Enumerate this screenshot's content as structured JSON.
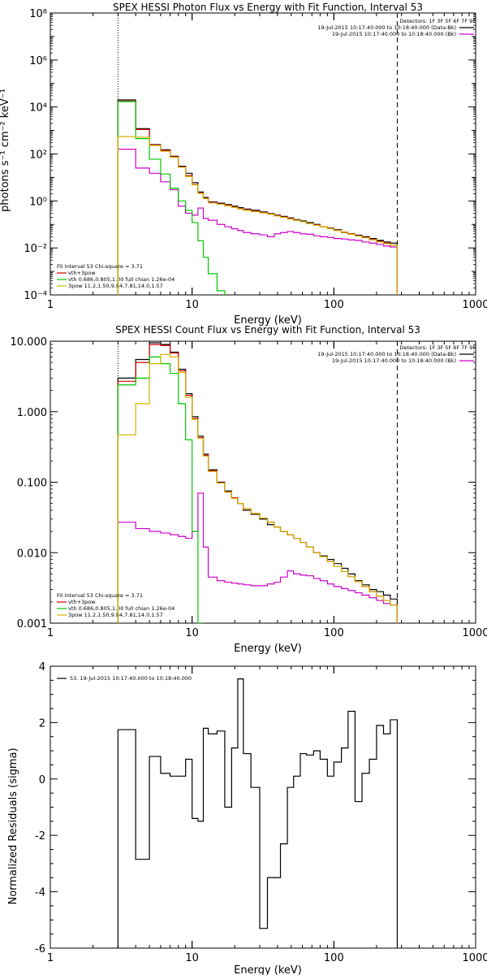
{
  "chart_data": [
    {
      "type": "line",
      "title": "SPEX HESSI Photon Flux vs Energy with Fit Function, Interval 53",
      "xlabel": "Energy (keV)",
      "ylabel": "photons s⁻¹ cm⁻² keV⁻¹",
      "xscale": "log",
      "yscale": "log",
      "xlim": [
        1,
        1000
      ],
      "ylim": [
        0.0001,
        100000000
      ],
      "x_ticks": [
        "1",
        "10",
        "100",
        "1000"
      ],
      "y_ticks": [
        "10⁻⁴",
        "10⁻²",
        "10⁰",
        "10²",
        "10⁴",
        "10⁶",
        "10⁸"
      ],
      "vlines": [
        {
          "x": 3,
          "style": "dotted"
        },
        {
          "x": 280,
          "style": "dashed"
        }
      ],
      "detectors_text": "Detectors: 1F 3F 5F 6F 7F 9F",
      "legend_right": [
        {
          "name": "19-Jul-2015 10:17:40.000 to 10:18:40.000 (Data-Bk)",
          "color": "#000000"
        },
        {
          "name": "19-Jul-2015 10:17:40.000 to 10:18:40.000 (Bk)",
          "color": "#cc00cc"
        }
      ],
      "legend_left": {
        "header": "Fit Interval 53   Chi-square = 3.71",
        "items": [
          {
            "name": "vth+3pow",
            "color": "#d40000"
          },
          {
            "name": "vth 0.686,0.805,1.00  full chian 1.26e-04",
            "color": "#00c800"
          },
          {
            "name": "3pow 11.2,1.50,9.84,7.81,14.0,1.57",
            "color": "#d4b400"
          }
        ]
      },
      "bin_edges": [
        3.0,
        3.5,
        4.0,
        4.5,
        5.0,
        5.5,
        6.0,
        6.5,
        7.0,
        7.5,
        8.0,
        8.5,
        9.0,
        9.5,
        10.0,
        11.0,
        12.0,
        13.0,
        15.0,
        17.0,
        19.0,
        21.0,
        23.0,
        26.0,
        30.0,
        34.0,
        38.0,
        42.0,
        47.0,
        52.0,
        58.0,
        64.0,
        72.0,
        80.0,
        90.0,
        100.0,
        113.0,
        126.0,
        141.0,
        158.0,
        178.0,
        200.0,
        224.0,
        250.0,
        280.0
      ],
      "series": [
        {
          "name": "Data-Bk",
          "color": "#000000",
          "values": [
            20000,
            20000,
            1200,
            1200,
            250,
            250,
            150,
            150,
            80,
            80,
            30,
            30,
            15,
            15,
            6,
            2.4,
            1.4,
            0.9,
            0.8,
            0.7,
            0.6,
            0.52,
            0.45,
            0.4,
            0.34,
            0.29,
            0.25,
            0.22,
            0.19,
            0.16,
            0.14,
            0.12,
            0.1,
            0.08,
            0.07,
            0.06,
            0.045,
            0.04,
            0.035,
            0.03,
            0.025,
            0.021,
            0.018,
            0.016
          ]
        },
        {
          "name": "Bk",
          "color": "#cc00cc",
          "values": [
            160,
            160,
            25,
            25,
            15,
            15,
            6.5,
            6.5,
            3,
            3,
            0.6,
            0.6,
            0.3,
            0.3,
            0.25,
            0.5,
            0.18,
            0.15,
            0.1,
            0.08,
            0.065,
            0.055,
            0.045,
            0.04,
            0.036,
            0.03,
            0.04,
            0.045,
            0.05,
            0.045,
            0.04,
            0.038,
            0.033,
            0.03,
            0.028,
            0.025,
            0.024,
            0.022,
            0.021,
            0.018,
            0.016,
            0.014,
            0.012,
            0.011
          ]
        },
        {
          "name": "vth+3pow",
          "color": "#d40000",
          "values": [
            18000,
            18000,
            1100,
            1100,
            240,
            240,
            140,
            140,
            75,
            75,
            28,
            28,
            12,
            12,
            5,
            2.2,
            1.3,
            0.85,
            0.75,
            0.65,
            0.55,
            0.48,
            0.42,
            0.37,
            0.32,
            0.28,
            0.24,
            0.21,
            0.18,
            0.15,
            0.13,
            0.11,
            0.095,
            0.08,
            0.068,
            0.057,
            0.047,
            0.04,
            0.033,
            0.028,
            0.023,
            0.019,
            0.016,
            0.013
          ]
        },
        {
          "name": "vth",
          "color": "#00c800",
          "values": [
            17000,
            17000,
            450,
            450,
            60,
            60,
            14,
            14,
            3.5,
            3.5,
            1.0,
            1.0,
            0.4,
            0.4,
            0.12,
            0.02,
            0.004,
            0.0008,
            0.00015
          ]
        },
        {
          "name": "3pow",
          "color": "#d4b400",
          "values": [
            550,
            550,
            520,
            520,
            230,
            230,
            130,
            130,
            72,
            72,
            27,
            27,
            11,
            11,
            4.8,
            2.1,
            1.25,
            0.82,
            0.72,
            0.62,
            0.53,
            0.46,
            0.4,
            0.35,
            0.31,
            0.27,
            0.23,
            0.2,
            0.17,
            0.15,
            0.13,
            0.11,
            0.092,
            0.078,
            0.066,
            0.055,
            0.046,
            0.038,
            0.032,
            0.027,
            0.022,
            0.018,
            0.015,
            0.013
          ]
        }
      ]
    },
    {
      "type": "line",
      "title": "SPEX HESSI Count Flux vs Energy with Fit Function, Interval 53",
      "xlabel": "Energy (keV)",
      "ylabel": "",
      "xscale": "log",
      "yscale": "log",
      "xlim": [
        1,
        1000
      ],
      "ylim": [
        0.001,
        10
      ],
      "x_ticks": [
        "1",
        "10",
        "100",
        "1000"
      ],
      "y_ticks": [
        "0.001",
        "0.010",
        "0.100",
        "1.000",
        "10.000"
      ],
      "vlines": [
        {
          "x": 3,
          "style": "dotted"
        },
        {
          "x": 280,
          "style": "dashed"
        }
      ],
      "detectors_text": "Detectors: 1F 3F 5F 6F 7F 9F",
      "legend_right": [
        {
          "name": "19-Jul-2015 10:17:40.000 to 10:18:40.000 (Data-Bk)",
          "color": "#000000"
        },
        {
          "name": "19-Jul-2015 10:17:40.000 to 10:18:40.000 (Bk)",
          "color": "#cc00cc"
        }
      ],
      "legend_left": {
        "header": "Fit Interval 53   Chi-square = 3.71",
        "items": [
          {
            "name": "vth+3pow",
            "color": "#d40000"
          },
          {
            "name": "vth 0.686,0.805,1.00  full chian 1.26e-04",
            "color": "#00c800"
          },
          {
            "name": "3pow 11.2,1.50,9.84,7.81,14.0,1.57",
            "color": "#d4b400"
          }
        ]
      },
      "bin_edges": [
        3.0,
        3.5,
        4.0,
        4.5,
        5.0,
        5.5,
        6.0,
        6.5,
        7.0,
        7.5,
        8.0,
        8.5,
        9.0,
        9.5,
        10.0,
        11.0,
        12.0,
        13.0,
        15.0,
        17.0,
        19.0,
        21.0,
        23.0,
        26.0,
        30.0,
        34.0,
        38.0,
        42.0,
        47.0,
        52.0,
        58.0,
        64.0,
        72.0,
        80.0,
        90.0,
        100.0,
        113.0,
        126.0,
        141.0,
        158.0,
        178.0,
        200.0,
        224.0,
        250.0,
        280.0
      ],
      "series": [
        {
          "name": "Data-Bk",
          "color": "#000000",
          "values": [
            3.0,
            3.0,
            5.5,
            5.5,
            9.5,
            9.5,
            9.0,
            9.0,
            7.0,
            7.0,
            4.0,
            4.0,
            1.8,
            1.8,
            0.85,
            0.45,
            0.25,
            0.15,
            0.1,
            0.075,
            0.06,
            0.05,
            0.04,
            0.035,
            0.03,
            0.025,
            0.023,
            0.02,
            0.018,
            0.016,
            0.014,
            0.012,
            0.01,
            0.009,
            0.008,
            0.007,
            0.006,
            0.005,
            0.004,
            0.0035,
            0.003,
            0.0028,
            0.0025,
            0.0022
          ]
        },
        {
          "name": "Bk",
          "color": "#cc00cc",
          "values": [
            0.027,
            0.027,
            0.022,
            0.022,
            0.02,
            0.02,
            0.019,
            0.019,
            0.018,
            0.018,
            0.017,
            0.017,
            0.016,
            0.016,
            0.02,
            0.07,
            0.012,
            0.0045,
            0.004,
            0.0038,
            0.0037,
            0.0036,
            0.0035,
            0.0034,
            0.0034,
            0.0036,
            0.0038,
            0.0045,
            0.0055,
            0.005,
            0.0048,
            0.0047,
            0.0043,
            0.004,
            0.0036,
            0.0033,
            0.0031,
            0.0029,
            0.0027,
            0.0025,
            0.0023,
            0.0021,
            0.0019,
            0.0018
          ]
        },
        {
          "name": "vth+3pow",
          "color": "#d40000",
          "values": [
            2.7,
            2.7,
            5.0,
            5.0,
            9.0,
            9.0,
            8.7,
            8.7,
            6.8,
            6.8,
            3.8,
            3.8,
            1.7,
            1.7,
            0.8,
            0.43,
            0.24,
            0.145,
            0.098,
            0.073,
            0.06,
            0.05,
            0.042,
            0.036,
            0.031,
            0.027,
            0.023,
            0.02,
            0.018,
            0.016,
            0.014,
            0.012,
            0.01,
            0.0088,
            0.0075,
            0.0064,
            0.0054,
            0.0046,
            0.0039,
            0.0033,
            0.0028,
            0.0024,
            0.0021,
            0.0018
          ]
        },
        {
          "name": "vth",
          "color": "#00c800",
          "values": [
            2.4,
            2.4,
            3.0,
            3.0,
            6.0,
            6.0,
            4.8,
            4.8,
            3.5,
            3.5,
            1.3,
            1.3,
            0.4,
            0.4,
            0.02,
            0.0009
          ]
        },
        {
          "name": "3pow",
          "color": "#d4b400",
          "values": [
            0.47,
            0.47,
            1.3,
            1.3,
            4.8,
            4.8,
            6.5,
            6.5,
            6.0,
            6.0,
            3.6,
            3.6,
            1.6,
            1.6,
            0.78,
            0.42,
            0.235,
            0.142,
            0.097,
            0.072,
            0.059,
            0.05,
            0.042,
            0.036,
            0.031,
            0.027,
            0.023,
            0.02,
            0.018,
            0.016,
            0.014,
            0.012,
            0.01,
            0.0088,
            0.0075,
            0.0064,
            0.0054,
            0.0046,
            0.0039,
            0.0033,
            0.0028,
            0.0024,
            0.0021,
            0.0018
          ]
        }
      ]
    },
    {
      "type": "line",
      "title": "",
      "xlabel": "Energy (keV)",
      "ylabel": "Normalized Residuals (sigma)",
      "xscale": "log",
      "yscale": "linear",
      "xlim": [
        1,
        1000
      ],
      "ylim": [
        -6,
        4
      ],
      "x_ticks": [
        "1",
        "10",
        "100",
        "1000"
      ],
      "y_ticks": [
        "-6",
        "-4",
        "-2",
        "0",
        "2",
        "4"
      ],
      "legend_left": {
        "header": "",
        "items": [
          {
            "name": "53. 19-Jul-2015 10:17:40.000 to 10:18:40.000",
            "color": "#000000"
          }
        ]
      },
      "bin_edges": [
        3.0,
        4.0,
        4.5,
        5.0,
        5.5,
        6.0,
        7.0,
        8.0,
        9.0,
        10.0,
        11.0,
        12.0,
        13.0,
        15.0,
        17.0,
        19.0,
        21.0,
        23.0,
        26.0,
        30.0,
        34.0,
        38.0,
        42.0,
        47.0,
        52.0,
        58.0,
        64.0,
        72.0,
        80.0,
        90.0,
        100.0,
        113.0,
        126.0,
        141.0,
        158.0,
        178.0,
        200.0,
        224.0,
        250.0,
        280.0
      ],
      "series": [
        {
          "name": "Residuals",
          "color": "#000000",
          "values": [
            1.75,
            -2.85,
            -2.85,
            0.8,
            0.8,
            0.2,
            0.1,
            0.1,
            0.7,
            -1.4,
            -1.5,
            1.8,
            1.6,
            1.7,
            -1.0,
            1.1,
            3.55,
            0.9,
            -0.3,
            -5.3,
            -3.5,
            -3.5,
            -2.3,
            -0.3,
            0.1,
            0.9,
            0.85,
            1.0,
            0.7,
            0.1,
            0.6,
            1.1,
            2.4,
            -0.8,
            0.2,
            0.7,
            1.9,
            1.6,
            2.1
          ]
        }
      ]
    }
  ]
}
